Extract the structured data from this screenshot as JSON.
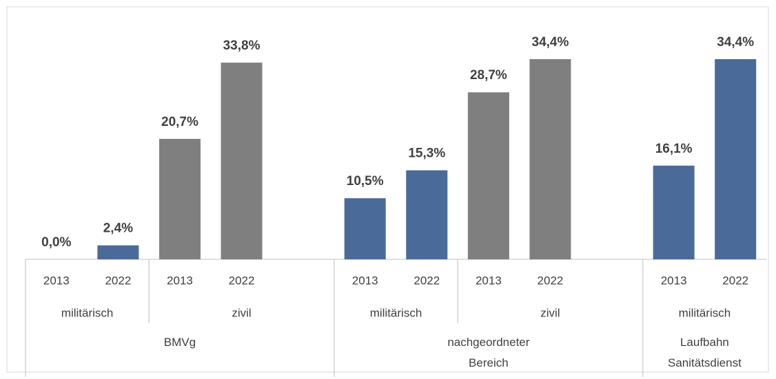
{
  "chart_data": {
    "type": "bar",
    "top_groups": [
      {
        "name": "BMVg",
        "sub_groups": [
          {
            "name": "militärisch",
            "color": "#4a6a9a",
            "categories": [
              "2013",
              "2022"
            ],
            "values": [
              0.0,
              2.4
            ],
            "value_labels": [
              "0,0%",
              "2,4%"
            ]
          },
          {
            "name": "zivil",
            "color": "#7f7f7f",
            "categories": [
              "2013",
              "2022",
              null
            ],
            "values": [
              20.7,
              33.8,
              null
            ],
            "value_labels": [
              "20,7%",
              "33,8%",
              null
            ]
          }
        ]
      },
      {
        "name": "nachgeordneter Bereich",
        "sub_groups": [
          {
            "name": "militärisch",
            "color": "#4a6a9a",
            "categories": [
              "2013",
              "2022"
            ],
            "values": [
              10.5,
              15.3
            ],
            "value_labels": [
              "10,5%",
              "15,3%"
            ]
          },
          {
            "name": "zivil",
            "color": "#7f7f7f",
            "categories": [
              "2013",
              "2022",
              null
            ],
            "values": [
              28.7,
              34.4,
              null
            ],
            "value_labels": [
              "28,7%",
              "34,4%",
              null
            ]
          }
        ]
      },
      {
        "name": "Laufbahn Sanitätsdienst",
        "sub_groups": [
          {
            "name": "militärisch",
            "color": "#4a6a9a",
            "categories": [
              "2013",
              "2022"
            ],
            "values": [
              16.1,
              34.4
            ],
            "value_labels": [
              "16,1%",
              "34,4%"
            ]
          }
        ]
      }
    ]
  }
}
